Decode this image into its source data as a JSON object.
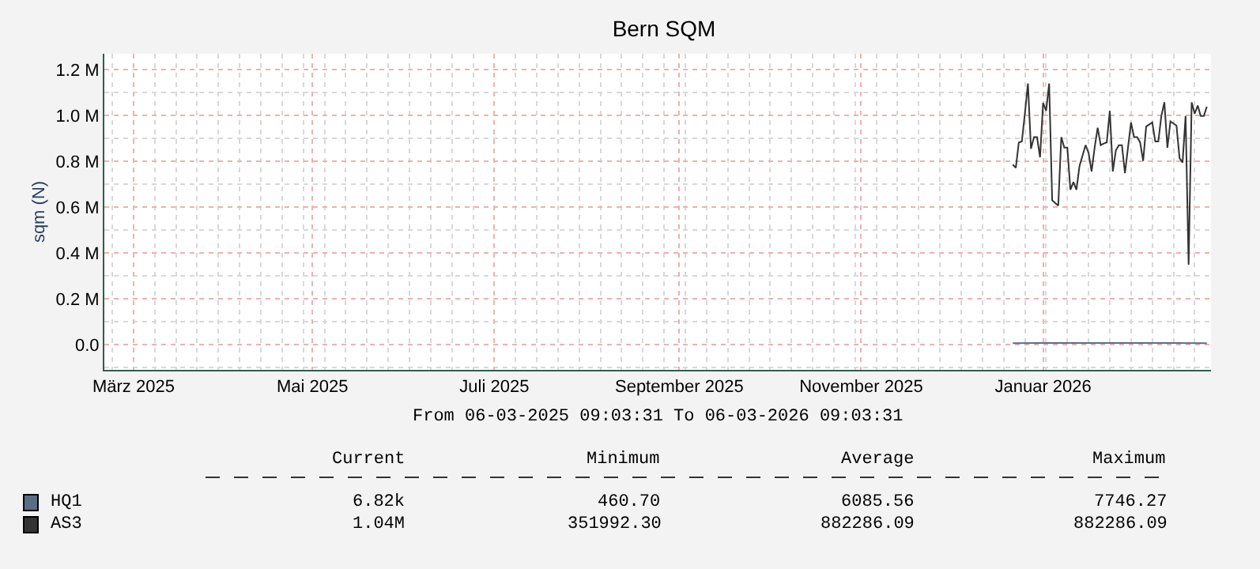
{
  "chart_data": {
    "type": "line",
    "title": "Bern SQM",
    "ylabel": "sqm (N)",
    "xlim": [
      "2025-03-06T09:03",
      "2026-03-06T09:03"
    ],
    "xticks": [
      {
        "value": "2025-03-16",
        "label": "März 2025"
      },
      {
        "value": "2025-05-14",
        "label": "Mai 2025"
      },
      {
        "value": "2025-07-13",
        "label": "Juli 2025"
      },
      {
        "value": "2025-09-12",
        "label": "September 2025"
      },
      {
        "value": "2025-11-11",
        "label": "November 2025"
      },
      {
        "value": "2026-01-10",
        "label": "Januar 2026"
      }
    ],
    "ylim": [
      -110000,
      1270000
    ],
    "yticks": [
      {
        "value": 0,
        "label": "0.0"
      },
      {
        "value": 200000,
        "label": "0.2 M"
      },
      {
        "value": 400000,
        "label": "0.4 M"
      },
      {
        "value": 600000,
        "label": "0.6 M"
      },
      {
        "value": 800000,
        "label": "0.8 M"
      },
      {
        "value": 1000000,
        "label": "1.0 M"
      },
      {
        "value": 1200000,
        "label": "1.2 M"
      }
    ],
    "grid": true,
    "legend": "bottom",
    "marker": "none",
    "line_style": "solid",
    "series": [
      {
        "name": "HQ1",
        "color": "#5a6d85",
        "x": [
          "2025-12-31",
          "2026-01-10",
          "2026-01-20",
          "2026-01-31",
          "2026-02-10",
          "2026-02-20",
          "2026-03-05"
        ],
        "values": [
          6500,
          6900,
          7200,
          7500,
          7400,
          7100,
          6820
        ]
      },
      {
        "name": "AS3",
        "color": "#333333",
        "x": [
          "2025-12-31",
          "2026-01-01",
          "2026-01-02",
          "2026-01-03",
          "2026-01-04",
          "2026-01-05",
          "2026-01-06",
          "2026-01-07",
          "2026-01-08",
          "2026-01-09",
          "2026-01-10",
          "2026-01-11",
          "2026-01-12",
          "2026-01-13",
          "2026-01-15",
          "2026-01-16",
          "2026-01-17",
          "2026-01-18",
          "2026-01-19",
          "2026-01-20",
          "2026-01-21",
          "2026-01-22",
          "2026-01-24",
          "2026-01-25",
          "2026-01-26",
          "2026-01-27",
          "2026-01-28",
          "2026-01-29",
          "2026-01-30",
          "2026-01-31",
          "2026-02-01",
          "2026-02-02",
          "2026-02-03",
          "2026-02-04",
          "2026-02-05",
          "2026-02-06",
          "2026-02-08",
          "2026-02-09",
          "2026-02-10",
          "2026-02-11",
          "2026-02-12",
          "2026-02-13",
          "2026-02-15",
          "2026-02-16",
          "2026-02-17",
          "2026-02-18",
          "2026-02-19",
          "2026-02-20",
          "2026-02-21",
          "2026-02-23",
          "2026-02-24",
          "2026-02-25",
          "2026-02-26",
          "2026-02-27",
          "2026-02-28",
          "2026-03-01",
          "2026-03-02",
          "2026-03-03",
          "2026-03-04",
          "2026-03-05"
        ],
        "values": [
          786000,
          772000,
          883000,
          887000,
          1009000,
          1140000,
          855000,
          906000,
          906000,
          818000,
          1055000,
          1021000,
          1140000,
          630000,
          607000,
          906000,
          860000,
          860000,
          676000,
          710000,
          676000,
          779000,
          871000,
          837000,
          756000,
          860000,
          947000,
          871000,
          878000,
          883000,
          1021000,
          756000,
          848000,
          871000,
          871000,
          749000,
          970000,
          906000,
          906000,
          883000,
          802000,
          952000,
          970000,
          887000,
          887000,
          998000,
          1058000,
          860000,
          975000,
          956000,
          814000,
          795000,
          998000,
          349000,
          1058000,
          1009000,
          1044000,
          998000,
          998000,
          1039000
        ]
      }
    ],
    "annotations": [
      "From 06-03-2025 09:03:31 To 06-03-2026 09:03:31",
      "Current",
      "Minimum",
      "Average",
      "Maximum",
      "6.82k",
      "460.70",
      "6085.56",
      "7746.27",
      "1.04M",
      "351992.30",
      "882286.09",
      "882286.09"
    ]
  }
}
